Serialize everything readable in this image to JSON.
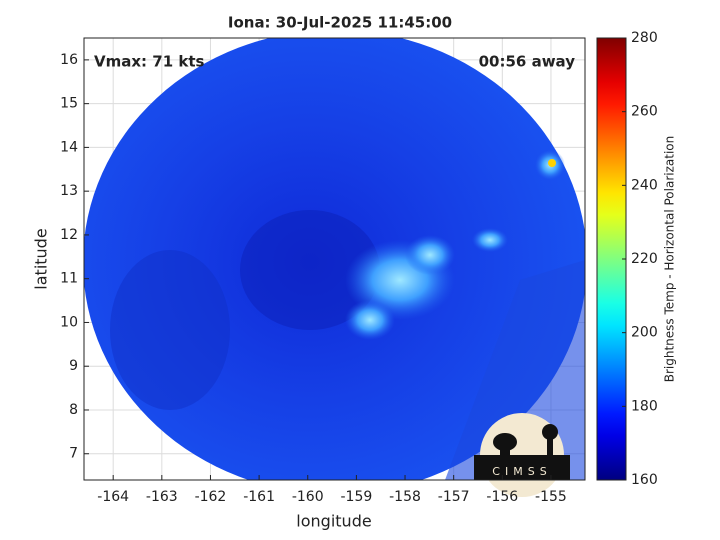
{
  "chart_data": {
    "type": "map",
    "title": "Iona: 30-Jul-2025 11:45:00",
    "x_label": "longitude",
    "y_label": "latitude",
    "annotations": [
      "Vmax: 71 kts",
      "00:56 away"
    ],
    "xlim": [
      -164.6,
      -154.3
    ],
    "xticks": [
      -164,
      -163,
      -162,
      -161,
      -160,
      -159,
      -158,
      -157,
      -156,
      -155
    ],
    "ylim": [
      6.4,
      16.5
    ],
    "yticks": [
      7,
      8,
      9,
      10,
      11,
      12,
      13,
      14,
      15,
      16
    ],
    "grid": true,
    "colorbar": {
      "label": "Brightness Temp - Horizontal Polarization",
      "colormap": "jet",
      "clim": [
        160,
        280
      ],
      "ticks": [
        160,
        180,
        200,
        220,
        240,
        260,
        280
      ]
    },
    "logo_text": "CIMSS"
  }
}
